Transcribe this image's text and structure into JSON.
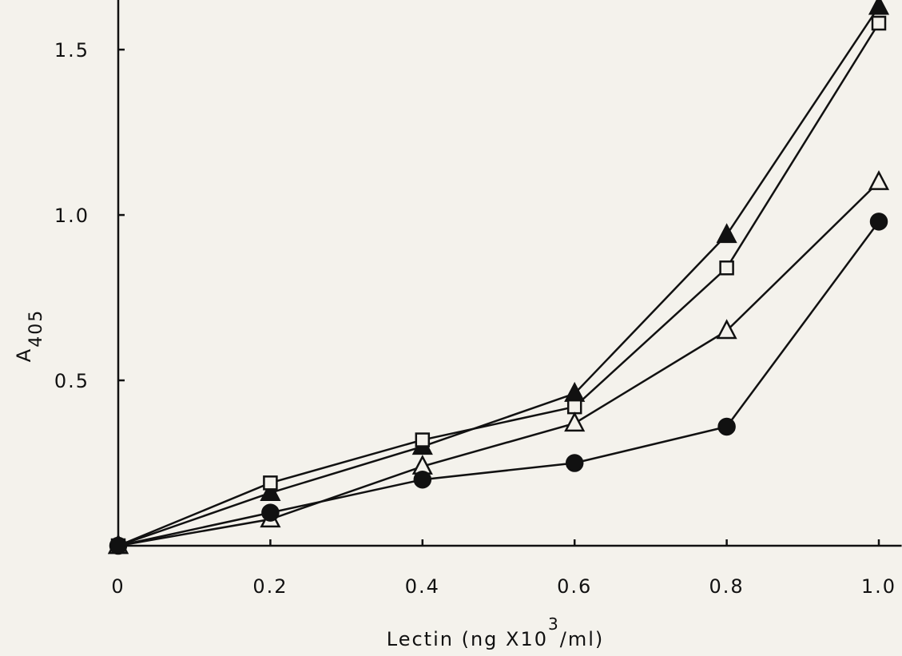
{
  "chart_data": {
    "type": "line",
    "x": [
      0,
      0.2,
      0.4,
      0.6,
      0.8,
      1.0
    ],
    "series": [
      {
        "marker": "filled-triangle",
        "color": "#111111",
        "values": [
          0,
          0.16,
          0.3,
          0.46,
          0.94,
          1.63
        ]
      },
      {
        "marker": "open-square",
        "color": "#111111",
        "values": [
          0,
          0.19,
          0.32,
          0.42,
          0.84,
          1.58
        ]
      },
      {
        "marker": "open-triangle",
        "color": "#111111",
        "values": [
          0,
          0.08,
          0.24,
          0.37,
          0.65,
          1.1
        ]
      },
      {
        "marker": "filled-circle",
        "color": "#111111",
        "values": [
          0,
          0.1,
          0.2,
          0.25,
          0.36,
          0.98
        ]
      }
    ],
    "xlim": [
      0,
      1.03
    ],
    "ylim": [
      0,
      1.65
    ],
    "xticks": [
      0,
      0.2,
      0.4,
      0.6,
      0.8,
      {
        "value": 1,
        "label": "1.0"
      }
    ],
    "yticks": [
      0.5,
      {
        "value": 1,
        "label": "1.0"
      },
      1.5
    ],
    "x_label": {
      "before": "Lectin (ng X10",
      "superscript": "3",
      "after": "/ml)"
    },
    "y_label": {
      "text": "A",
      "subscript": "405"
    }
  }
}
